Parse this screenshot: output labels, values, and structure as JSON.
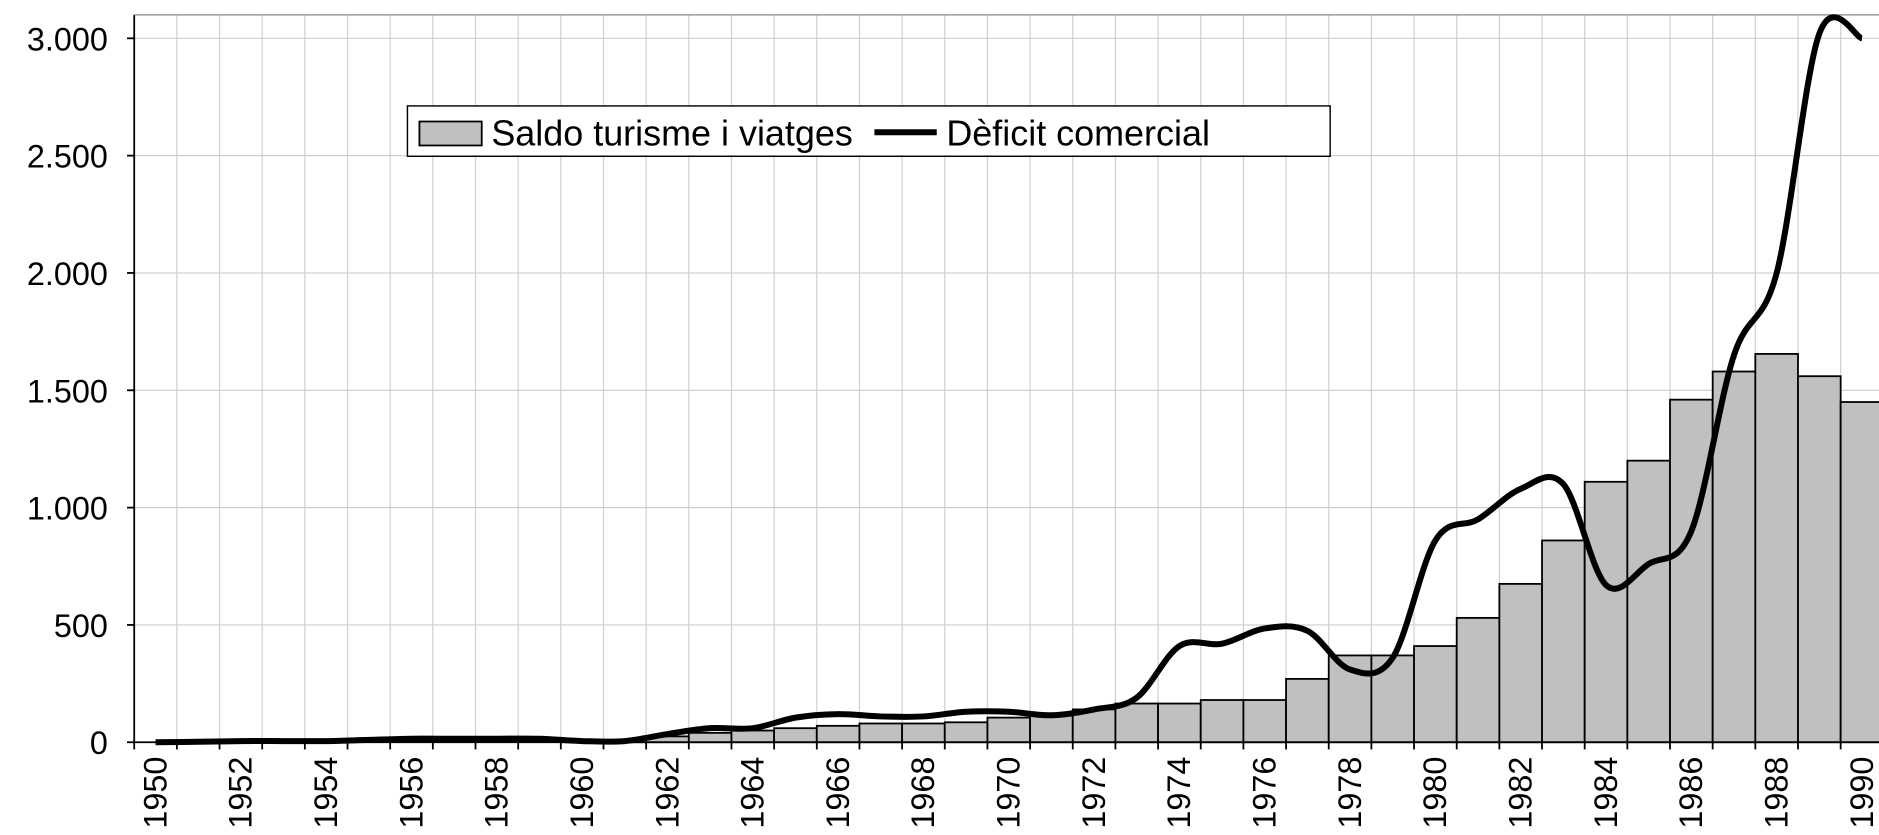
{
  "chart_data": {
    "type": "bar-line",
    "categories": [
      "1950",
      null,
      "1952",
      null,
      "1954",
      null,
      "1956",
      null,
      "1958",
      null,
      "1960",
      null,
      "1962",
      null,
      "1964",
      null,
      "1966",
      null,
      "1968",
      null,
      "1970",
      null,
      "1972",
      null,
      "1974",
      null,
      "1976",
      null,
      "1978",
      null,
      "1980",
      null,
      "1982",
      null,
      "1984",
      null,
      "1986",
      null,
      "1988",
      null,
      "1990"
    ],
    "series": [
      {
        "name": "Saldo turisme i viatges",
        "type": "bar",
        "color": "#c0c0c0",
        "values": [
          0,
          0,
          0,
          0,
          0,
          0,
          0,
          0,
          0,
          0,
          0,
          10,
          25,
          40,
          50,
          60,
          70,
          80,
          80,
          85,
          105,
          115,
          140,
          165,
          165,
          180,
          180,
          270,
          370,
          370,
          410,
          530,
          675,
          860,
          1110,
          1200,
          1460,
          1580,
          1655,
          1560,
          1450
        ]
      },
      {
        "name": "Dèficit comercial",
        "type": "line",
        "color": "#000000",
        "values": [
          0,
          2,
          5,
          5,
          5,
          10,
          15,
          15,
          15,
          15,
          5,
          5,
          35,
          60,
          60,
          105,
          120,
          110,
          110,
          130,
          130,
          115,
          140,
          190,
          410,
          420,
          485,
          475,
          310,
          360,
          860,
          950,
          1080,
          1100,
          670,
          760,
          900,
          1650,
          2000,
          3020,
          3000
        ]
      }
    ],
    "ylim": [
      0,
      3100
    ],
    "yticks": [
      0,
      500,
      {
        "value": 1000,
        "label": "1.000"
      },
      {
        "value": 1500,
        "label": "1.500"
      },
      {
        "value": 2000,
        "label": "2.000"
      },
      {
        "value": 2500,
        "label": "2.500"
      },
      {
        "value": 3000,
        "label": "3.000"
      }
    ],
    "grid": true,
    "legend": "top"
  }
}
